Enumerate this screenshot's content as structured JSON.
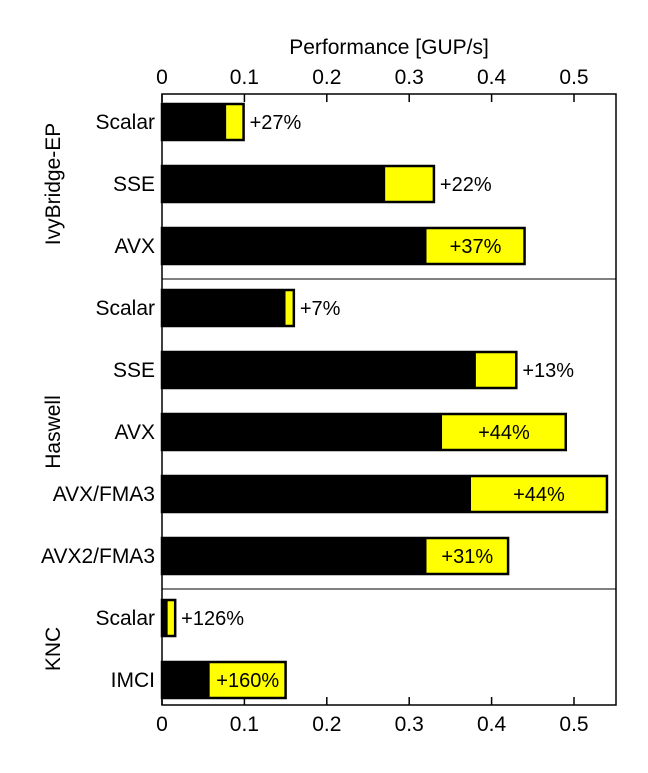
{
  "chart_data": {
    "type": "bar",
    "orientation": "horizontal",
    "stacked": true,
    "title": "Performance [GUP/s]",
    "xlabel": "Performance [GUP/s]",
    "xlim": [
      0,
      0.55
    ],
    "xticks": [
      0,
      0.1,
      0.2,
      0.3,
      0.4,
      0.5
    ],
    "xtick_labels": [
      "0",
      "0.1",
      "0.2",
      "0.3",
      "0.4",
      "0.5"
    ],
    "colors": {
      "base": "#000000",
      "improvement": "#ffff00"
    },
    "groups": [
      {
        "name": "IvyBridge-EP",
        "bars": [
          {
            "label": "Scalar",
            "base": 0.078,
            "total": 0.099,
            "annotation": "+27%"
          },
          {
            "label": "SSE",
            "base": 0.271,
            "total": 0.33,
            "annotation": "+22%"
          },
          {
            "label": "AVX",
            "base": 0.321,
            "total": 0.44,
            "annotation": "+37%"
          }
        ]
      },
      {
        "name": "Haswell",
        "bars": [
          {
            "label": "Scalar",
            "base": 0.15,
            "total": 0.16,
            "annotation": "+7%"
          },
          {
            "label": "SSE",
            "base": 0.381,
            "total": 0.43,
            "annotation": "+13%"
          },
          {
            "label": "AVX",
            "base": 0.34,
            "total": 0.49,
            "annotation": "+44%"
          },
          {
            "label": "AVX/FMA3",
            "base": 0.375,
            "total": 0.54,
            "annotation": "+44%"
          },
          {
            "label": "AVX2/FMA3",
            "base": 0.321,
            "total": 0.42,
            "annotation": "+31%"
          }
        ]
      },
      {
        "name": "KNC",
        "bars": [
          {
            "label": "Scalar",
            "base": 0.007,
            "total": 0.016,
            "annotation": "+126%"
          },
          {
            "label": "IMCI",
            "base": 0.058,
            "total": 0.15,
            "annotation": "+160%"
          }
        ]
      }
    ]
  }
}
